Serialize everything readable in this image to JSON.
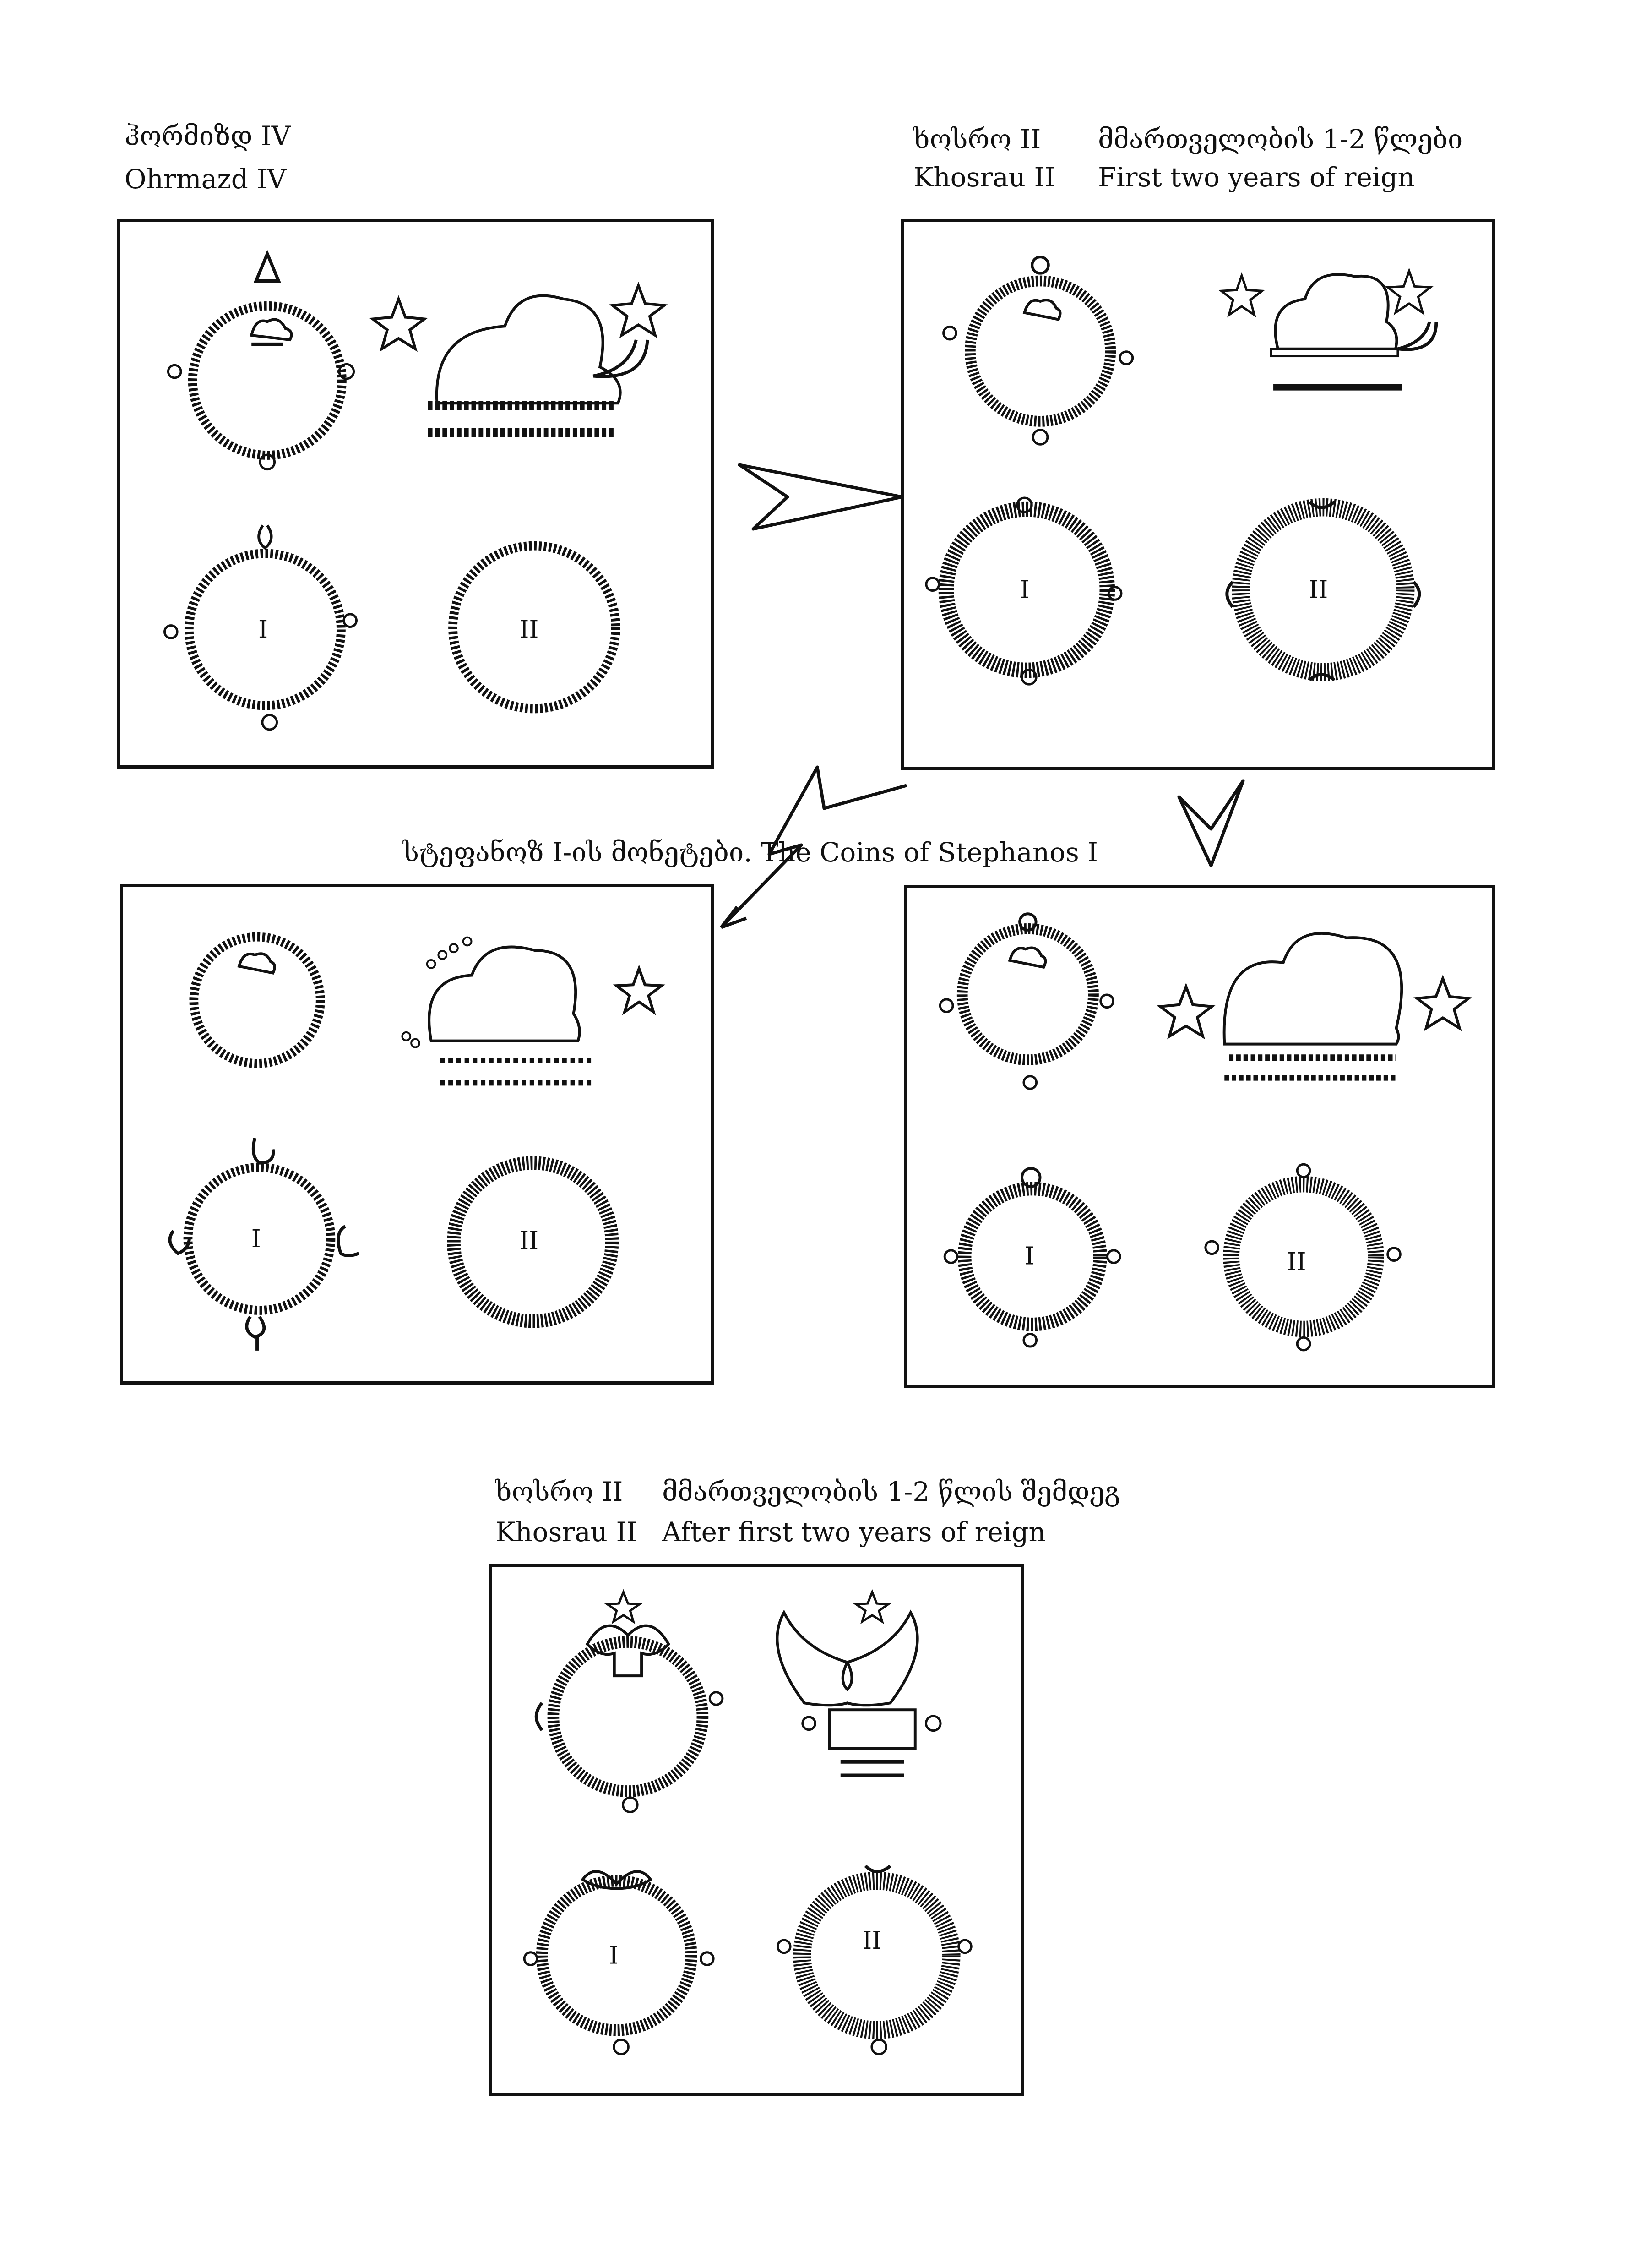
{
  "labels": {
    "ohrmazd_ka": "ჰორმიზდ IV",
    "ohrmazd_en": "Ohrmazd IV",
    "khosrau_a_ka_name": "ხოსრო II",
    "khosrau_a_ka_desc": "მმართველობის 1-2 წლები",
    "khosrau_a_en_name": "Khosrau II",
    "khosrau_a_en_desc": "First two years of reign",
    "stephanos_caption": "სტეფანოზ I-ის მონეტები.  The Coins of Stephanos I",
    "khosrau_b_ka_name": "ხოსრო II",
    "khosrau_b_ka_desc": "მმართველობის 1-2 წლის შემდეგ",
    "khosrau_b_en_name": "Khosrau II",
    "khosrau_b_en_desc": "After first two years of reign"
  },
  "ring_labels": {
    "one": "I",
    "two": "II"
  },
  "colors": {
    "ink": "#111111",
    "paper": "#ffffff"
  }
}
